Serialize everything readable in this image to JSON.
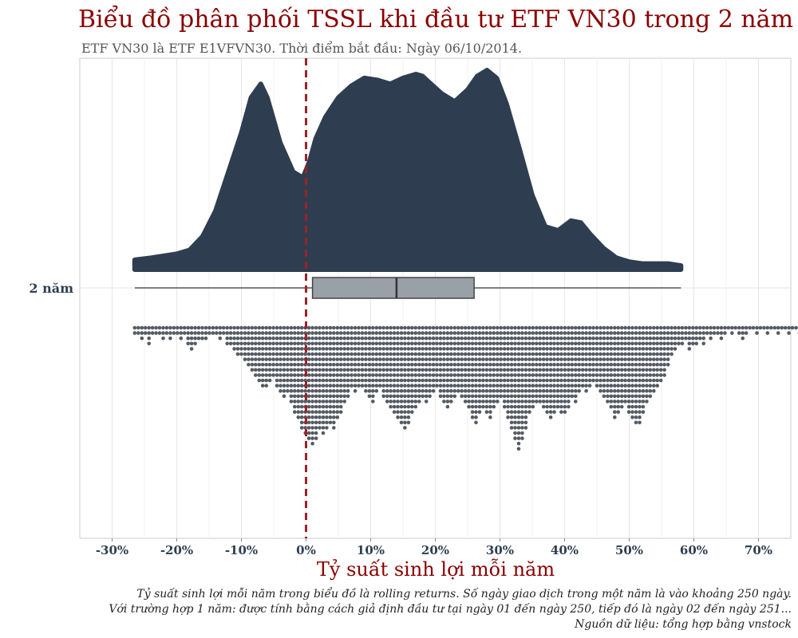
{
  "chart_data": {
    "type": "raincloud",
    "title": "Biểu đồ phân phối TSSL khi đầu tư ETF VN30 trong 2 năm",
    "subtitle": "ETF VN30 là ETF E1VFVN30.  Thời điểm bắt đầu: Ngày 06/10/2014.",
    "xlabel": "Tỷ suất sinh lợi mỗi năm",
    "category": "2 năm",
    "xlim": [
      -35,
      75
    ],
    "xticks": [
      -30,
      -20,
      -10,
      0,
      10,
      20,
      30,
      40,
      50,
      60,
      70
    ],
    "xtick_labels": [
      "-30%",
      "-20%",
      "-10%",
      "0%",
      "10%",
      "20%",
      "30%",
      "40%",
      "50%",
      "60%",
      "70%"
    ],
    "reference_line_x": 0,
    "density": {
      "x": [
        -26.5,
        -24,
        -22,
        -20,
        -18,
        -16,
        -14,
        -12,
        -10,
        -8.5,
        -7,
        -6,
        -4,
        -2,
        -0.5,
        0.5,
        1.5,
        3,
        5,
        7,
        9,
        11,
        13,
        15,
        17,
        18,
        19,
        21,
        23,
        25,
        26.5,
        28,
        29.5,
        31,
        33,
        35,
        37,
        39,
        41,
        42.5,
        44,
        46,
        48,
        50,
        52,
        54,
        56,
        58
      ],
      "y": [
        0.05,
        0.06,
        0.07,
        0.08,
        0.1,
        0.17,
        0.3,
        0.5,
        0.7,
        0.88,
        0.95,
        0.88,
        0.65,
        0.5,
        0.47,
        0.55,
        0.67,
        0.78,
        0.88,
        0.94,
        0.98,
        0.97,
        0.95,
        0.98,
        1.0,
        0.99,
        0.96,
        0.9,
        0.86,
        0.92,
        0.99,
        1.02,
        0.98,
        0.85,
        0.62,
        0.38,
        0.22,
        0.2,
        0.25,
        0.24,
        0.18,
        0.11,
        0.06,
        0.04,
        0.03,
        0.03,
        0.03,
        0.02
      ]
    },
    "boxplot": {
      "min": -26.5,
      "q1": 1,
      "median": 14,
      "q3": 26,
      "max": 58
    },
    "dot_counts": {
      "start": -26.5,
      "step": 0.55,
      "counts": [
        2,
        2,
        3,
        2,
        4,
        2,
        2,
        2,
        3,
        2,
        3,
        2,
        2,
        3,
        2,
        4,
        5,
        4,
        3,
        3,
        3,
        2,
        2,
        2,
        3,
        2,
        4,
        4,
        5,
        6,
        6,
        7,
        8,
        9,
        10,
        11,
        12,
        12,
        11,
        10,
        12,
        13,
        14,
        13,
        15,
        17,
        18,
        20,
        21,
        22,
        23,
        22,
        20,
        21,
        20,
        19,
        20,
        18,
        17,
        15,
        14,
        12,
        13,
        12,
        12,
        13,
        14,
        15,
        13,
        12,
        14,
        15,
        16,
        17,
        18,
        19,
        20,
        19,
        17,
        16,
        15,
        14,
        15,
        14,
        13,
        12,
        14,
        15,
        16,
        15,
        14,
        13,
        14,
        15,
        16,
        18,
        19,
        17,
        16,
        17,
        18,
        16,
        15,
        14,
        16,
        18,
        20,
        22,
        24,
        22,
        20,
        17,
        16,
        15,
        15,
        16,
        17,
        18,
        17,
        16,
        17,
        17,
        16,
        14,
        15,
        13,
        12,
        13,
        12,
        11,
        12,
        13,
        14,
        15,
        16,
        18,
        17,
        16,
        15,
        17,
        18,
        19,
        19,
        17,
        15,
        14,
        13,
        12,
        11,
        10,
        8,
        6,
        5,
        4,
        4,
        3,
        5,
        4,
        4,
        3,
        4,
        2,
        3,
        2,
        2,
        3,
        2,
        1,
        2,
        1,
        2,
        3,
        2,
        1,
        1,
        2,
        1,
        1,
        2,
        1,
        1,
        2,
        1,
        1,
        2,
        1,
        1,
        2,
        1,
        1,
        1,
        1,
        1,
        1,
        2,
        1,
        1,
        1,
        1,
        1,
        2,
        1,
        1,
        2,
        1,
        1,
        1,
        1,
        1,
        1,
        2,
        1,
        1,
        1,
        1,
        1,
        1,
        1,
        1,
        1,
        1,
        1,
        1,
        1,
        1,
        1,
        1,
        1,
        2,
        1,
        1,
        1,
        1,
        1,
        2,
        1
      ]
    }
  },
  "captions": [
    "Tỷ suất sinh lợi mỗi năm trong biểu đồ là rolling returns. Số ngày giao dịch trong một năm là vào khoảng 250 ngày.",
    "Với trường hợp 1 năm: được tính bằng cách giả định đầu tư tại ngày 01 đến ngày 250, tiếp đó là ngày 02 đến ngày 251...",
    "Nguồn dữ liệu: tổng hợp bằng vnstock"
  ],
  "colors": {
    "density_fill": "#2e3e50",
    "box_fill": "#9aa0a8",
    "box_stroke": "#444444",
    "dots": "#555b63",
    "reference_line": "#9b2226",
    "title": "#8b0000",
    "tick_text": "#2e3e50",
    "grid": "#e6e6e6",
    "panel_border": "#cccccc"
  }
}
